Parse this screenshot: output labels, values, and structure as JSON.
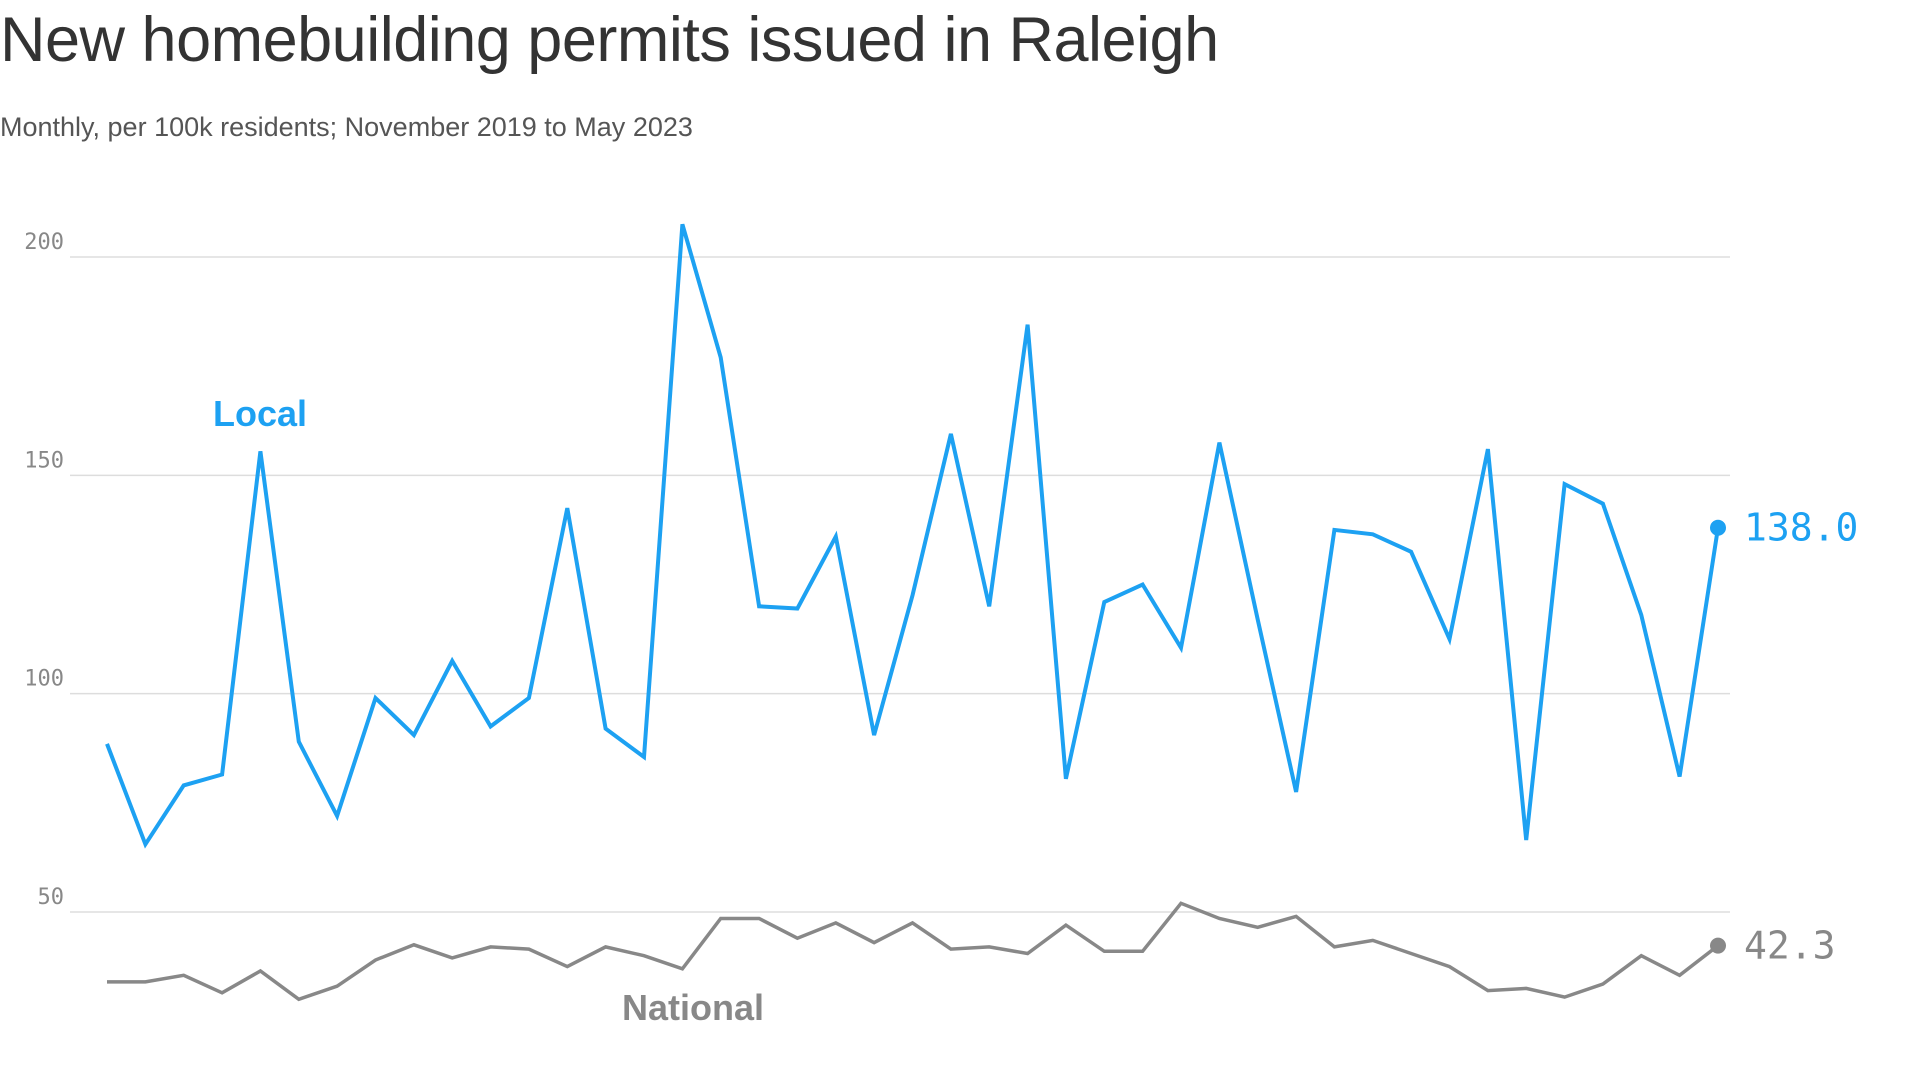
{
  "title": "New homebuilding permits issued in Raleigh",
  "subtitle": "Monthly, per 100k residents; November 2019 to May 2023",
  "colors": {
    "local": "#1da1f2",
    "national": "#888888",
    "grid": "#dddddd"
  },
  "chart_data": {
    "type": "line",
    "title": "New homebuilding permits issued in Raleigh",
    "subtitle": "Monthly, per 100k residents; November 2019 to May 2023",
    "xlabel": "",
    "ylabel": "",
    "ylim": [
      20,
      210
    ],
    "yticks": [
      50,
      100,
      150,
      200
    ],
    "grid": true,
    "x": [
      "2019-11",
      "2019-12",
      "2020-01",
      "2020-02",
      "2020-03",
      "2020-04",
      "2020-05",
      "2020-06",
      "2020-07",
      "2020-08",
      "2020-09",
      "2020-10",
      "2020-11",
      "2020-12",
      "2021-01",
      "2021-02",
      "2021-03",
      "2021-04",
      "2021-05",
      "2021-06",
      "2021-07",
      "2021-08",
      "2021-09",
      "2021-10",
      "2021-11",
      "2021-12",
      "2022-01",
      "2022-02",
      "2022-03",
      "2022-04",
      "2022-05",
      "2022-06",
      "2022-07",
      "2022-08",
      "2022-09",
      "2022-10",
      "2022-11",
      "2022-12",
      "2023-01",
      "2023-02",
      "2023-03",
      "2023-04",
      "2023-05"
    ],
    "series": [
      {
        "name": "Local",
        "color": "#1da1f2",
        "values": [
          88.5,
          65.5,
          79,
          81.5,
          155.5,
          89,
          72,
          99,
          90.5,
          107.5,
          92.5,
          99,
          142.5,
          92,
          85.5,
          207.5,
          177,
          120,
          119.5,
          136,
          90.5,
          122.5,
          159.5,
          120,
          184.5,
          80.5,
          121,
          125,
          110.5,
          157.5,
          117,
          77.5,
          137.5,
          136.5,
          132.5,
          112.5,
          156,
          66.5,
          148,
          143.5,
          118,
          81,
          138.0
        ]
      },
      {
        "name": "National",
        "color": "#888888",
        "values": [
          34,
          34,
          35.5,
          31.5,
          36.5,
          30,
          33,
          39,
          42.5,
          39.5,
          42,
          41.5,
          37.5,
          42,
          40,
          37,
          48.5,
          48.5,
          44,
          47.5,
          43,
          47.5,
          41.5,
          42,
          40.5,
          47,
          41,
          41,
          52,
          48.5,
          46.5,
          49,
          42,
          43.5,
          40.5,
          37.5,
          32,
          32.5,
          30.5,
          33.5,
          40,
          35.5,
          42.3
        ]
      }
    ],
    "annotations": {
      "local_label": "Local",
      "national_label": "National",
      "local_end_value": "138.0",
      "national_end_value": "42.3"
    }
  }
}
